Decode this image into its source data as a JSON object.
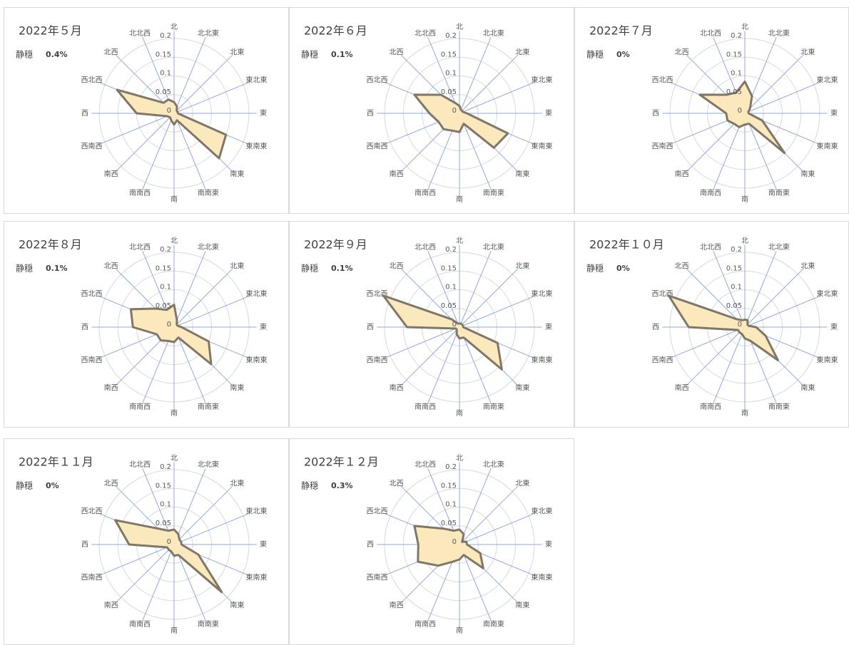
{
  "chart_data": [
    {
      "type": "radar",
      "title": "2022年５月",
      "calm": {
        "label": "静穏",
        "text": "0.4%"
      },
      "categories": [
        "北",
        "北北東",
        "北東",
        "東北東",
        "東",
        "東南東",
        "南東",
        "南南東",
        "南",
        "南南西",
        "南西",
        "西南西",
        "西",
        "西北西",
        "北西",
        "北北西"
      ],
      "values": [
        0.03,
        0.02,
        0.01,
        0.01,
        0.01,
        0.15,
        0.17,
        0.02,
        0.03,
        0.02,
        0.015,
        0.02,
        0.1,
        0.165,
        0.04,
        0.04
      ],
      "rlim": [
        0,
        0.2
      ],
      "rticks": [
        0,
        0.05,
        0.1,
        0.15,
        0.2
      ],
      "color": "#fbe8bd",
      "line_color": "#7f7767",
      "grid": true
    },
    {
      "type": "radar",
      "title": "2022年６月",
      "calm": {
        "label": "静穏",
        "text": "0.1%"
      },
      "categories": [
        "北",
        "北北東",
        "北東",
        "東北東",
        "東",
        "東南東",
        "南東",
        "南南東",
        "南",
        "南南西",
        "南西",
        "西南西",
        "西",
        "西北西",
        "北西",
        "北北西"
      ],
      "values": [
        0.02,
        0.01,
        0.01,
        0.01,
        0.02,
        0.14,
        0.13,
        0.03,
        0.05,
        0.05,
        0.06,
        0.06,
        0.08,
        0.13,
        0.07,
        0.03
      ],
      "rlim": [
        0,
        0.2
      ],
      "rticks": [
        0,
        0.05,
        0.1,
        0.15,
        0.2
      ],
      "color": "#fbe8bd",
      "line_color": "#7f7767",
      "grid": true
    },
    {
      "type": "radar",
      "title": "2022年７月",
      "calm": {
        "label": "静穏",
        "text": "0%"
      },
      "categories": [
        "北",
        "北北東",
        "北東",
        "東北東",
        "東",
        "東南東",
        "南東",
        "南南東",
        "南",
        "南南西",
        "南西",
        "西南西",
        "西",
        "西北西",
        "北西",
        "北北西"
      ],
      "values": [
        0.085,
        0.05,
        0.02,
        0.01,
        0.01,
        0.05,
        0.15,
        0.03,
        0.03,
        0.04,
        0.04,
        0.05,
        0.05,
        0.13,
        0.07,
        0.06
      ],
      "rlim": [
        0,
        0.2
      ],
      "rticks": [
        0,
        0.05,
        0.1,
        0.15,
        0.2
      ],
      "color": "#fbe8bd",
      "line_color": "#7f7767",
      "grid": true
    },
    {
      "type": "radar",
      "title": "2022年８月",
      "calm": {
        "label": "静穏",
        "text": "0.1%"
      },
      "categories": [
        "北",
        "北北東",
        "北東",
        "東北東",
        "東",
        "東南東",
        "南東",
        "南南東",
        "南",
        "南南西",
        "南西",
        "西南西",
        "西",
        "西北西",
        "北西",
        "北北西"
      ],
      "values": [
        0.06,
        0.02,
        0.01,
        0.01,
        0.02,
        0.1,
        0.14,
        0.03,
        0.04,
        0.04,
        0.05,
        0.05,
        0.11,
        0.125,
        0.07,
        0.05
      ],
      "rlim": [
        0,
        0.2
      ],
      "rticks": [
        0,
        0.05,
        0.1,
        0.15,
        0.2
      ],
      "color": "#fbe8bd",
      "line_color": "#7f7767",
      "grid": true
    },
    {
      "type": "radar",
      "title": "2022年９月",
      "calm": {
        "label": "静穏",
        "text": "0.1%"
      },
      "categories": [
        "北",
        "北北東",
        "北東",
        "東北東",
        "東",
        "東南東",
        "南東",
        "南南東",
        "南",
        "南南西",
        "南西",
        "西南西",
        "西",
        "西北西",
        "北西",
        "北北西"
      ],
      "values": [
        0.01,
        0.01,
        0.01,
        0.01,
        0.01,
        0.11,
        0.16,
        0.03,
        0.03,
        0.02,
        0.01,
        0.01,
        0.14,
        0.22,
        0.03,
        0.01
      ],
      "rlim": [
        0,
        0.2
      ],
      "rticks": [
        0,
        0.05,
        0.1,
        0.15,
        0.2
      ],
      "color": "#fbe8bd",
      "line_color": "#7f7767",
      "grid": true
    },
    {
      "type": "radar",
      "title": "2022年１０月",
      "calm": {
        "label": "静穏",
        "text": "0%"
      },
      "categories": [
        "北",
        "北北東",
        "北東",
        "東北東",
        "東",
        "東南東",
        "南東",
        "南南東",
        "南",
        "南南西",
        "南西",
        "西南西",
        "西",
        "西北西",
        "北西",
        "北北西"
      ],
      "values": [
        0.02,
        0.02,
        0.01,
        0.01,
        0.03,
        0.06,
        0.125,
        0.04,
        0.03,
        0.02,
        0.02,
        0.02,
        0.15,
        0.22,
        0.03,
        0.02
      ],
      "rlim": [
        0,
        0.2
      ],
      "rticks": [
        0,
        0.05,
        0.1,
        0.15,
        0.2
      ],
      "color": "#fbe8bd",
      "line_color": "#7f7767",
      "grid": true
    },
    {
      "type": "radar",
      "title": "2022年１１月",
      "calm": {
        "label": "静穏",
        "text": "0%"
      },
      "categories": [
        "北",
        "北北東",
        "北東",
        "東北東",
        "東",
        "東南東",
        "南東",
        "南南東",
        "南",
        "南南西",
        "南西",
        "西南西",
        "西",
        "西北西",
        "北西",
        "北北西"
      ],
      "values": [
        0.04,
        0.03,
        0.02,
        0.02,
        0.02,
        0.07,
        0.18,
        0.03,
        0.03,
        0.02,
        0.02,
        0.02,
        0.12,
        0.17,
        0.06,
        0.04
      ],
      "rlim": [
        0,
        0.2
      ],
      "rticks": [
        0,
        0.05,
        0.1,
        0.15,
        0.2
      ],
      "color": "#fbe8bd",
      "line_color": "#7f7767",
      "grid": true
    },
    {
      "type": "radar",
      "title": "2022年１２月",
      "calm": {
        "label": "静穏",
        "text": "0.3%"
      },
      "categories": [
        "北",
        "北北東",
        "北東",
        "東北東",
        "東",
        "東南東",
        "南東",
        "南南東",
        "南",
        "南南西",
        "南西",
        "西南西",
        "西",
        "西北西",
        "北西",
        "北北西"
      ],
      "values": [
        0.04,
        0.03,
        0.01,
        0.02,
        0.02,
        0.06,
        0.09,
        0.03,
        0.04,
        0.05,
        0.08,
        0.12,
        0.11,
        0.13,
        0.06,
        0.04
      ],
      "rlim": [
        0,
        0.2
      ],
      "rticks": [
        0,
        0.05,
        0.1,
        0.15,
        0.2
      ],
      "color": "#fbe8bd",
      "line_color": "#7f7767",
      "grid": true
    }
  ]
}
